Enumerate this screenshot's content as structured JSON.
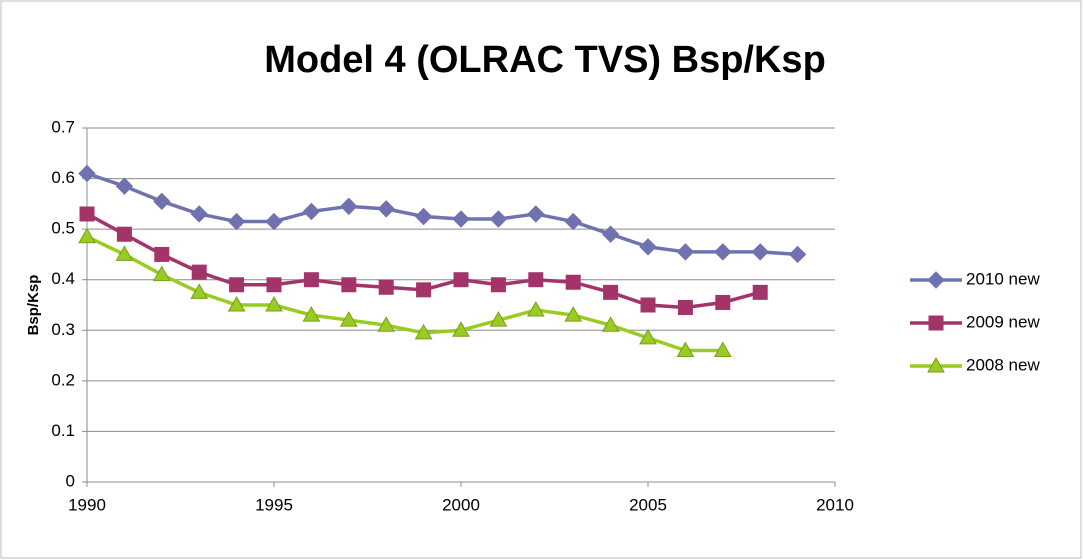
{
  "chart_data": {
    "type": "line",
    "title": "Model 4 (OLRAC TVS) Bsp/Ksp",
    "y_label": "Bsp/Ksp",
    "x": [
      1990,
      1991,
      1992,
      1993,
      1994,
      1995,
      1996,
      1997,
      1998,
      1999,
      2000,
      2001,
      2002,
      2003,
      2004,
      2005,
      2006,
      2007,
      2008,
      2009
    ],
    "series": [
      {
        "name": "2010 new",
        "color": "#7072b0",
        "marker": "diamond",
        "values": [
          0.61,
          0.585,
          0.555,
          0.53,
          0.515,
          0.515,
          0.535,
          0.545,
          0.54,
          0.525,
          0.52,
          0.52,
          0.53,
          0.515,
          0.49,
          0.465,
          0.455,
          0.455,
          0.455,
          0.45
        ]
      },
      {
        "name": "2009 new",
        "color": "#a3346a",
        "marker": "square",
        "values": [
          0.53,
          0.49,
          0.45,
          0.415,
          0.39,
          0.39,
          0.4,
          0.39,
          0.385,
          0.38,
          0.4,
          0.39,
          0.4,
          0.395,
          0.375,
          0.35,
          0.345,
          0.355,
          0.375,
          null
        ]
      },
      {
        "name": "2008 new",
        "color": "#99cc22",
        "marker": "triangle",
        "values": [
          0.485,
          0.45,
          0.41,
          0.375,
          0.35,
          0.35,
          0.33,
          0.32,
          0.31,
          0.295,
          0.3,
          0.32,
          0.34,
          0.33,
          0.31,
          0.285,
          0.26,
          0.26,
          null,
          null
        ]
      }
    ],
    "xlim": [
      1990,
      2010
    ],
    "xticks": [
      1990,
      1995,
      2000,
      2005,
      2010
    ],
    "ylim": [
      0,
      0.7
    ],
    "yticks": [
      0,
      0.1,
      0.2,
      0.3,
      0.4,
      0.5,
      0.6,
      0.7
    ],
    "grid": true,
    "legend": "right"
  }
}
